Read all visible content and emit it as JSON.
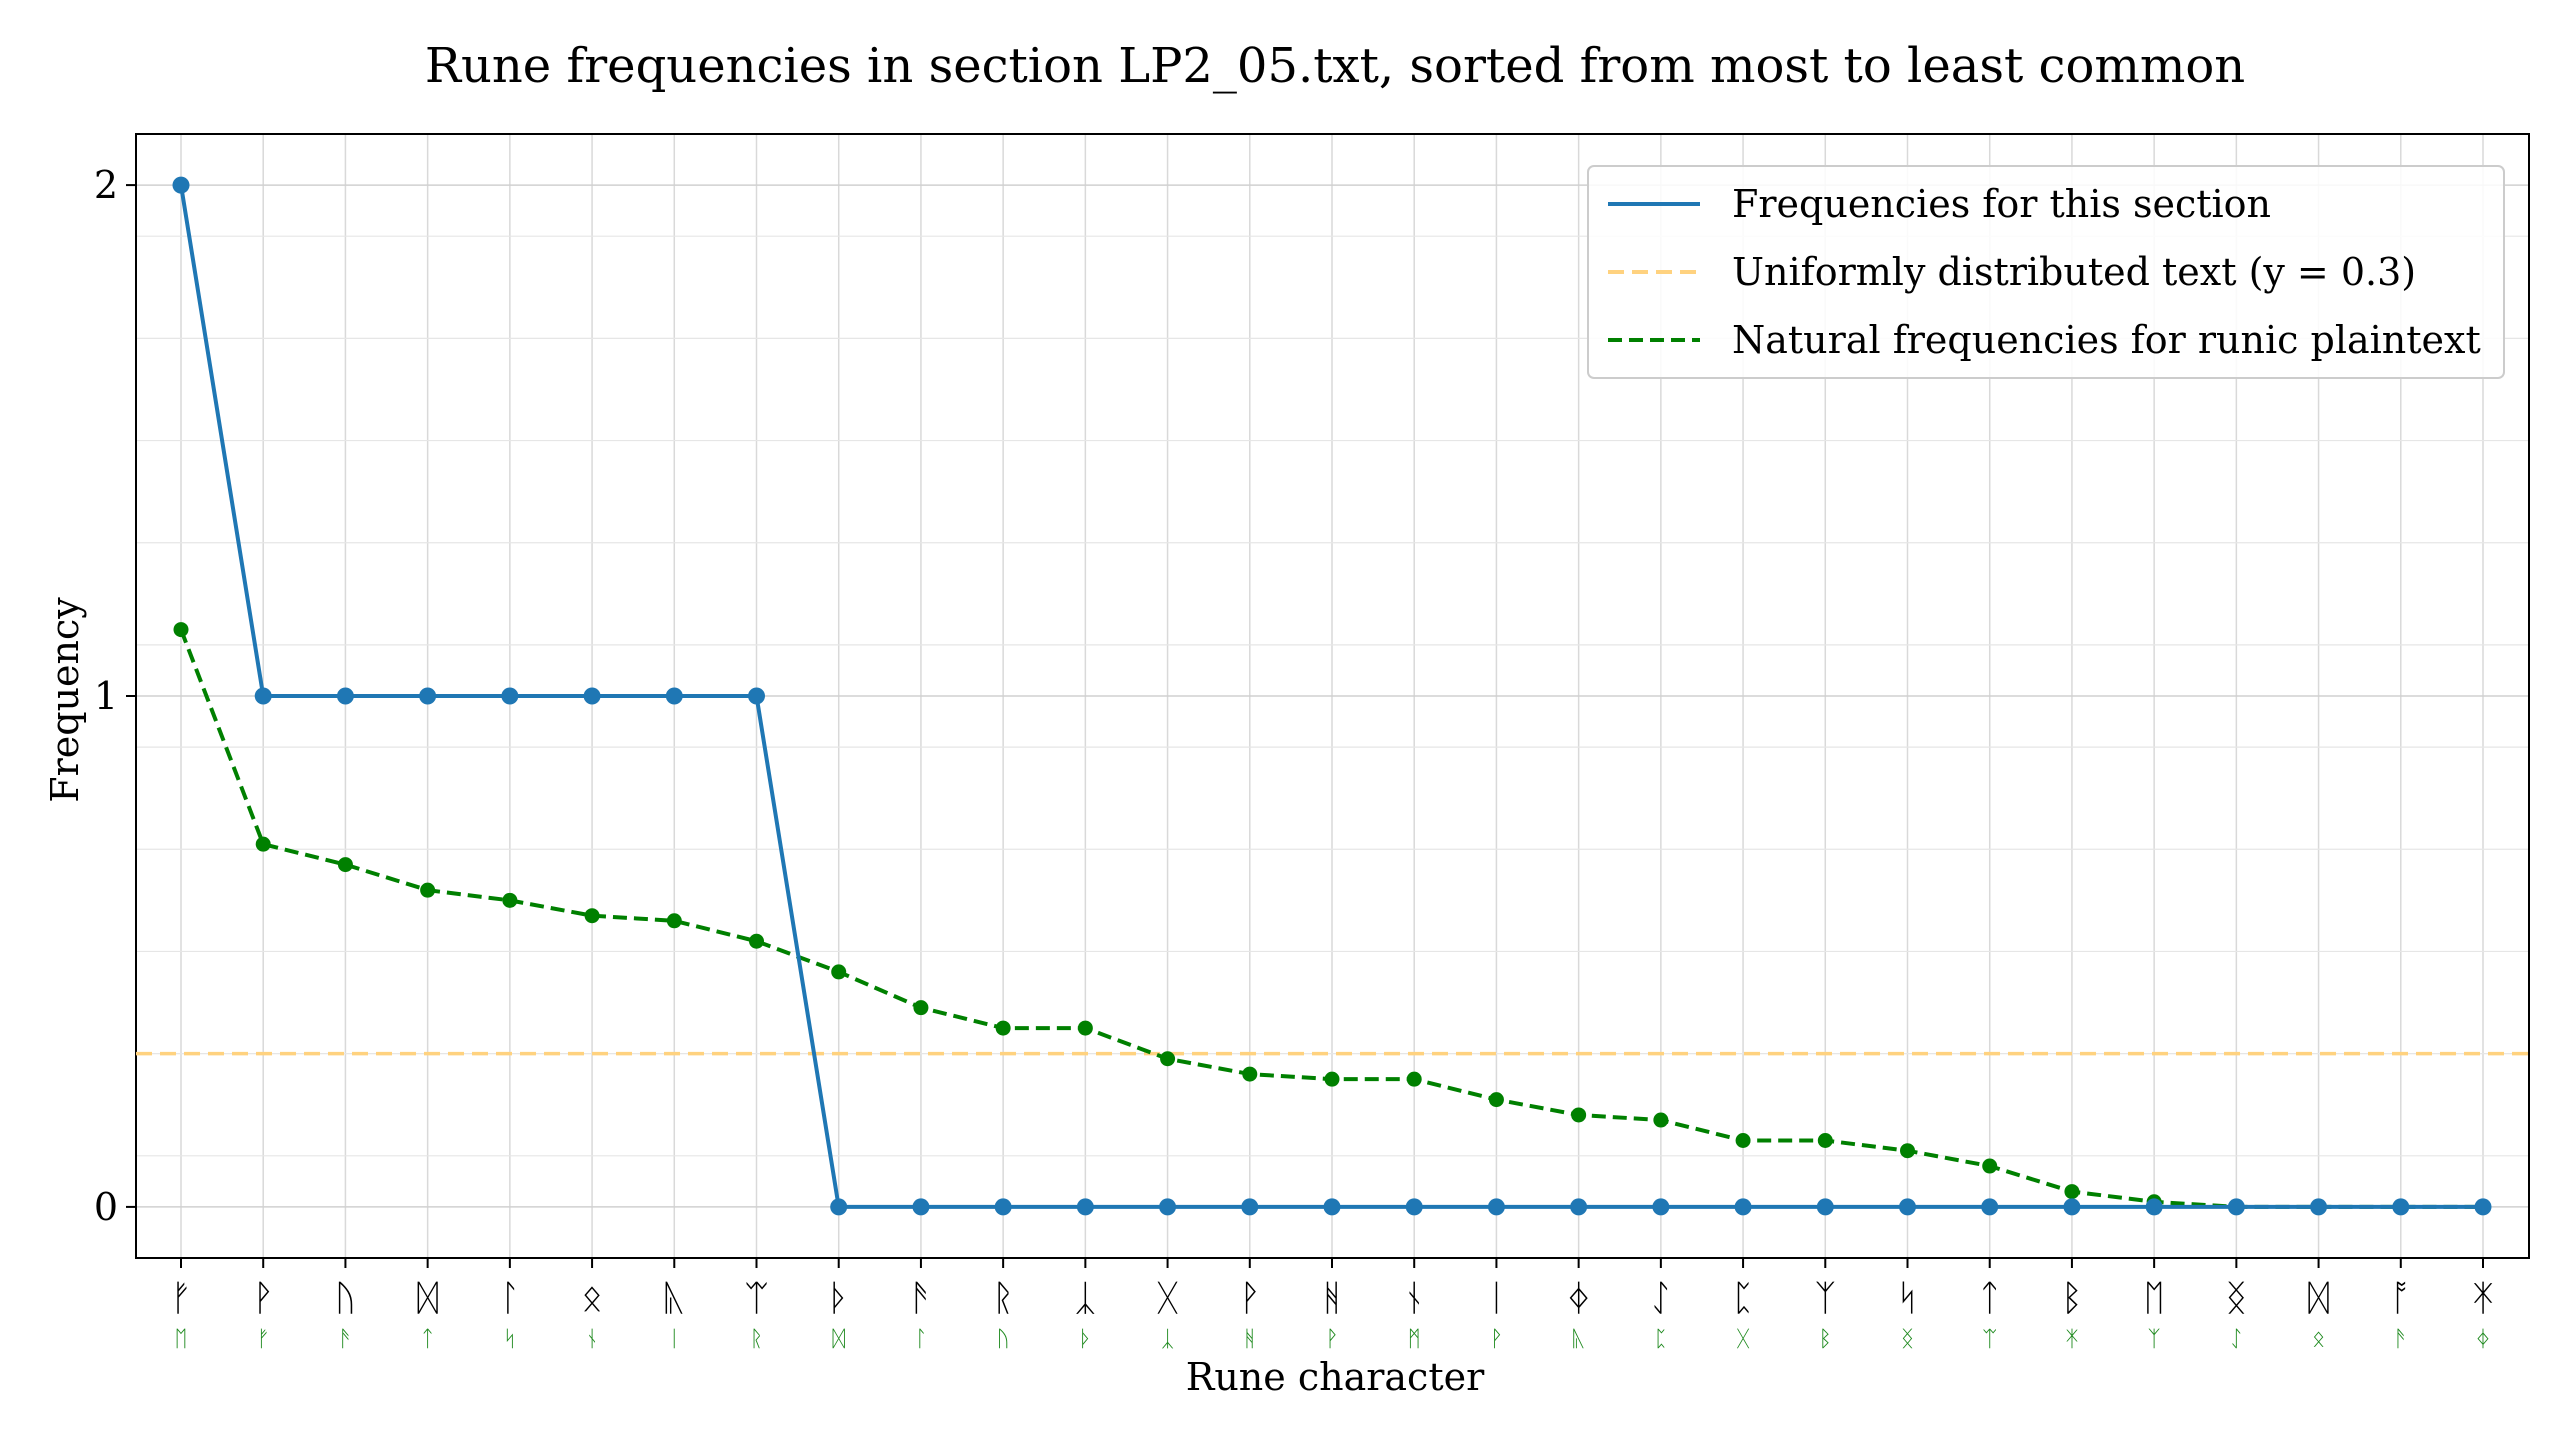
{
  "chart_data": {
    "type": "line",
    "title": "Rune frequencies in section LP2_05.txt, sorted from most to least common",
    "xlabel": "Rune character",
    "ylabel": "Frequency",
    "ylim": [
      -0.1,
      2.1
    ],
    "yticks": [
      0,
      1,
      2
    ],
    "grid": true,
    "legend_position": "top-right",
    "categories": [
      "ᚠ",
      "ᚹ",
      "ᚢ",
      "ᛞ",
      "ᛚ",
      "ᛟ",
      "ᚣ",
      "ᛠ",
      "ᚦ",
      "ᚫ",
      "ᚱ",
      "ᛣ",
      "ᚷ",
      "ᚹ",
      "ᚻ",
      "ᚾ",
      "ᛁ",
      "ᛄ",
      "ᛇ",
      "ᛈ",
      "ᛉ",
      "ᛋ",
      "ᛏ",
      "ᛒ",
      "ᛖ",
      "ᛝ",
      "ᛞ",
      "ᚩ",
      "ᛡ"
    ],
    "secondary_labels": [
      "ᛖ",
      "ᚠ",
      "ᚫ",
      "ᛏ",
      "ᛋ",
      "ᚾ",
      "ᛁ",
      "ᚱ",
      "ᛞ",
      "ᛚ",
      "ᚢ",
      "ᚦ",
      "ᛣ",
      "ᚻ",
      "ᚹ",
      "ᛗ",
      "ᚹ",
      "ᚣ",
      "ᛈ",
      "ᚷ",
      "ᛒ",
      "ᛝ",
      "ᛠ",
      "ᛡ",
      "ᛉ",
      "ᛇ",
      "ᛟ",
      "ᚫ",
      "ᛄ"
    ],
    "series": [
      {
        "name": "Frequencies for this section",
        "style": "solid",
        "color": "#1f77b4",
        "values": [
          2,
          1,
          1,
          1,
          1,
          1,
          1,
          1,
          0,
          0,
          0,
          0,
          0,
          0,
          0,
          0,
          0,
          0,
          0,
          0,
          0,
          0,
          0,
          0,
          0,
          0,
          0,
          0,
          0
        ]
      },
      {
        "name": "Natural frequencies for runic plaintext",
        "style": "dashed",
        "color": "#008000",
        "values": [
          1.13,
          0.71,
          0.67,
          0.62,
          0.6,
          0.57,
          0.56,
          0.52,
          0.46,
          0.39,
          0.35,
          0.35,
          0.29,
          0.26,
          0.25,
          0.25,
          0.21,
          0.18,
          0.17,
          0.13,
          0.13,
          0.11,
          0.08,
          0.03,
          0.01,
          0.0,
          0.0,
          0.0,
          0.0
        ]
      }
    ],
    "reference_lines": [
      {
        "name": "Uniformly distributed text (y = 0.3)",
        "y": 0.3,
        "color": "#ffd27f",
        "style": "dashed"
      }
    ]
  }
}
